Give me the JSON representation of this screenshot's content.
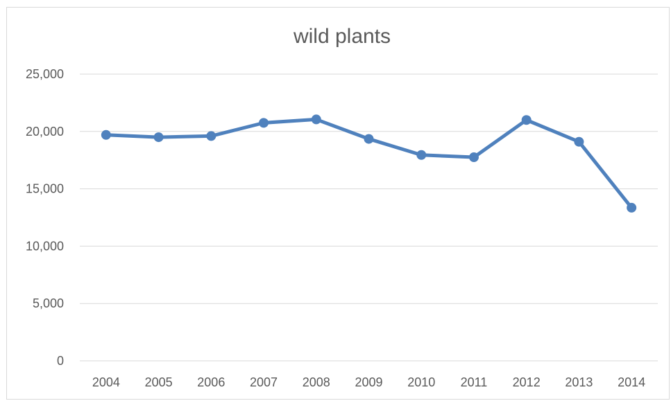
{
  "chart_data": {
    "type": "line",
    "title": "wild plants",
    "xlabel": "",
    "ylabel": "",
    "categories": [
      "2004",
      "2005",
      "2006",
      "2007",
      "2008",
      "2009",
      "2010",
      "2011",
      "2012",
      "2013",
      "2014"
    ],
    "series": [
      {
        "values": [
          19700,
          19500,
          19600,
          20750,
          21050,
          19350,
          17950,
          17750,
          21000,
          19100,
          13350
        ],
        "color": "#4f81bd"
      }
    ],
    "ylim": [
      0,
      25000
    ],
    "yticks": [
      0,
      5000,
      10000,
      15000,
      20000,
      25000
    ],
    "ytick_labels": [
      "0",
      "5,000",
      "10,000",
      "15,000",
      "20,000",
      "25,000"
    ],
    "grid": true,
    "legend": "none",
    "markers": true
  }
}
